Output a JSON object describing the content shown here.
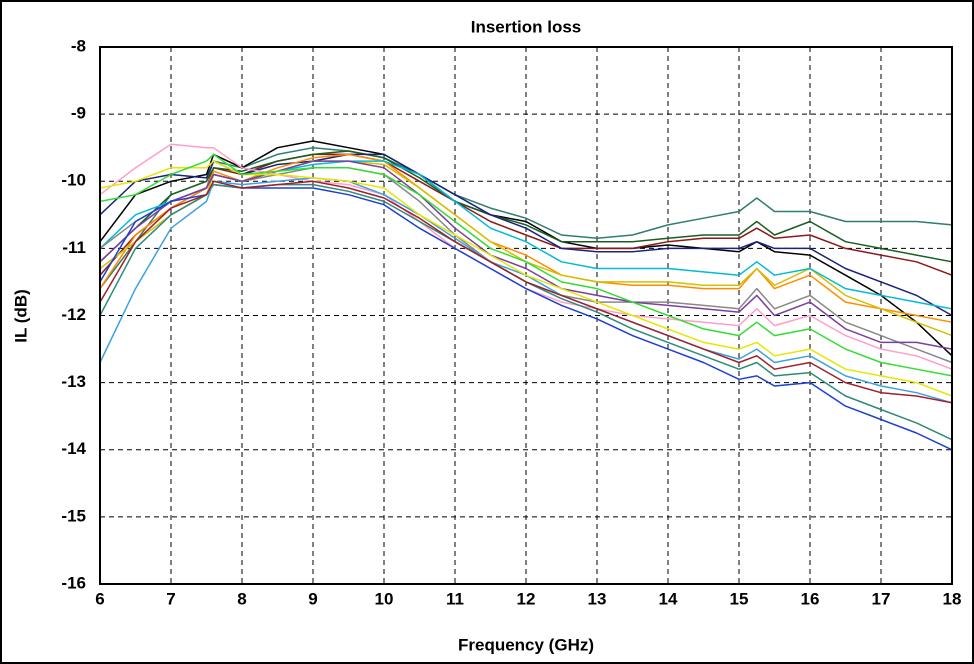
{
  "chart_data": {
    "type": "line",
    "title": "Insertion loss",
    "x_label": "Frequency (GHz)",
    "y_label": "IL (dB)",
    "x": [
      6,
      6.5,
      7,
      7.5,
      7.6,
      8,
      8.5,
      9,
      9.5,
      10,
      10.5,
      11,
      11.5,
      12,
      12.5,
      13,
      13.5,
      14,
      14.5,
      15,
      15.25,
      15.5,
      16,
      16.5,
      17,
      17.5,
      18
    ],
    "xlim": [
      6,
      18
    ],
    "xticks": [
      6,
      7,
      8,
      9,
      10,
      11,
      12,
      13,
      14,
      15,
      16,
      17,
      18
    ],
    "ylim": [
      -16,
      -8
    ],
    "yticks": [
      -16,
      -15,
      -14,
      -13,
      -12,
      -11,
      -10,
      -9,
      -8
    ],
    "grid": true,
    "series": [
      {
        "color": "#2e7d6e",
        "values": [
          -11.6,
          -10.9,
          -10.2,
          -10.0,
          -9.7,
          -9.8,
          -9.6,
          -9.5,
          -9.55,
          -9.65,
          -9.9,
          -10.2,
          -10.4,
          -10.55,
          -10.8,
          -10.85,
          -10.8,
          -10.65,
          -10.55,
          -10.45,
          -10.25,
          -10.45,
          -10.45,
          -10.6,
          -10.6,
          -10.6,
          -10.65
        ]
      },
      {
        "color": "#000000",
        "values": [
          -10.9,
          -10.2,
          -10.0,
          -9.9,
          -9.6,
          -9.8,
          -9.5,
          -9.4,
          -9.5,
          -9.6,
          -9.9,
          -10.3,
          -10.5,
          -10.6,
          -10.9,
          -11.0,
          -11.0,
          -10.95,
          -11.0,
          -11.05,
          -10.9,
          -11.05,
          -11.1,
          -11.4,
          -11.7,
          -12.1,
          -12.6
        ]
      },
      {
        "color": "#8b1a1a",
        "values": [
          -11.4,
          -10.8,
          -10.4,
          -10.1,
          -9.8,
          -9.9,
          -9.7,
          -9.6,
          -9.6,
          -9.7,
          -10.0,
          -10.3,
          -10.6,
          -10.8,
          -11.0,
          -11.0,
          -11.0,
          -10.9,
          -10.85,
          -10.85,
          -10.7,
          -10.85,
          -10.8,
          -11.0,
          -11.1,
          -11.2,
          -11.4
        ]
      },
      {
        "color": "#1b5e20",
        "values": [
          -11.2,
          -10.7,
          -10.2,
          -10.0,
          -9.8,
          -9.85,
          -9.7,
          -9.6,
          -9.55,
          -9.65,
          -9.95,
          -10.3,
          -10.5,
          -10.65,
          -10.9,
          -10.9,
          -10.9,
          -10.85,
          -10.8,
          -10.8,
          -10.6,
          -10.8,
          -10.6,
          -10.9,
          -11.0,
          -11.1,
          -11.2
        ]
      },
      {
        "color": "#1a237e",
        "values": [
          -10.5,
          -10.0,
          -9.9,
          -9.95,
          -9.7,
          -9.9,
          -9.75,
          -9.7,
          -9.6,
          -9.6,
          -9.9,
          -10.2,
          -10.5,
          -10.7,
          -11.0,
          -11.05,
          -11.05,
          -11.0,
          -11.0,
          -11.0,
          -10.9,
          -11.0,
          -11.0,
          -11.3,
          -11.5,
          -11.7,
          -12.0
        ]
      },
      {
        "color": "#ff8c00",
        "values": [
          -11.6,
          -10.8,
          -10.4,
          -10.1,
          -9.85,
          -10.0,
          -9.8,
          -9.65,
          -9.6,
          -9.7,
          -10.1,
          -10.5,
          -10.9,
          -11.1,
          -11.4,
          -11.5,
          -11.55,
          -11.55,
          -11.6,
          -11.6,
          -11.3,
          -11.6,
          -11.4,
          -11.8,
          -11.9,
          -12.0,
          -12.1
        ]
      },
      {
        "color": "#d4c000",
        "values": [
          -11.3,
          -10.9,
          -10.5,
          -10.2,
          -9.9,
          -10.0,
          -9.85,
          -9.7,
          -9.7,
          -9.75,
          -10.1,
          -10.5,
          -10.9,
          -11.2,
          -11.4,
          -11.5,
          -11.5,
          -11.5,
          -11.55,
          -11.55,
          -11.3,
          -11.55,
          -11.3,
          -11.7,
          -11.9,
          -12.1,
          -12.3
        ]
      },
      {
        "color": "#00bcd4",
        "values": [
          -11.0,
          -10.5,
          -10.3,
          -10.1,
          -9.9,
          -10.0,
          -9.85,
          -9.75,
          -9.7,
          -9.7,
          -9.9,
          -10.3,
          -10.7,
          -10.9,
          -11.2,
          -11.3,
          -11.3,
          -11.3,
          -11.35,
          -11.4,
          -11.2,
          -11.4,
          -11.3,
          -11.6,
          -11.7,
          -11.8,
          -11.9
        ]
      },
      {
        "color": "#888888",
        "values": [
          -11.0,
          -10.6,
          -10.3,
          -10.1,
          -9.9,
          -10.0,
          -9.9,
          -9.8,
          -9.8,
          -9.9,
          -10.3,
          -10.8,
          -11.2,
          -11.5,
          -11.7,
          -11.8,
          -11.8,
          -11.8,
          -11.85,
          -11.9,
          -11.6,
          -11.9,
          -11.7,
          -12.1,
          -12.3,
          -12.5,
          -12.7
        ]
      },
      {
        "color": "#7b3fa0",
        "values": [
          -11.2,
          -10.7,
          -10.3,
          -10.1,
          -9.9,
          -10.0,
          -9.85,
          -9.7,
          -9.7,
          -9.8,
          -10.2,
          -10.7,
          -11.1,
          -11.3,
          -11.6,
          -11.7,
          -11.8,
          -11.85,
          -11.9,
          -11.95,
          -11.7,
          -12.0,
          -11.8,
          -12.2,
          -12.4,
          -12.4,
          -12.5
        ]
      },
      {
        "color": "#ff9ecb",
        "values": [
          -10.2,
          -9.8,
          -9.45,
          -9.5,
          -9.5,
          -9.8,
          -9.9,
          -10.0,
          -10.05,
          -10.2,
          -10.6,
          -11.0,
          -11.3,
          -11.6,
          -11.8,
          -11.9,
          -12.0,
          -12.05,
          -12.1,
          -12.15,
          -11.9,
          -12.15,
          -12.0,
          -12.3,
          -12.5,
          -12.6,
          -12.8
        ]
      },
      {
        "color": "#1e40d0",
        "values": [
          -11.5,
          -10.6,
          -10.3,
          -10.2,
          -10.05,
          -10.1,
          -10.1,
          -10.1,
          -10.2,
          -10.35,
          -10.7,
          -11.0,
          -11.3,
          -11.6,
          -11.85,
          -12.05,
          -12.3,
          -12.5,
          -12.7,
          -12.95,
          -12.9,
          -13.05,
          -13.0,
          -13.35,
          -13.55,
          -13.75,
          -14.0
        ]
      },
      {
        "color": "#2e8b77",
        "values": [
          -12.0,
          -11.0,
          -10.5,
          -10.2,
          -10.05,
          -10.1,
          -10.05,
          -10.05,
          -10.15,
          -10.3,
          -10.6,
          -10.9,
          -11.2,
          -11.5,
          -11.75,
          -11.95,
          -12.2,
          -12.4,
          -12.6,
          -12.8,
          -12.7,
          -12.9,
          -12.85,
          -13.2,
          -13.4,
          -13.6,
          -13.85
        ]
      },
      {
        "color": "#3ba3e0",
        "values": [
          -12.7,
          -11.6,
          -10.7,
          -10.3,
          -10.0,
          -10.05,
          -10.0,
          -9.95,
          -10.0,
          -10.2,
          -10.5,
          -10.85,
          -11.2,
          -11.4,
          -11.7,
          -11.9,
          -12.1,
          -12.3,
          -12.5,
          -12.65,
          -12.5,
          -12.7,
          -12.6,
          -12.9,
          -13.05,
          -13.15,
          -13.3
        ]
      },
      {
        "color": "#e6e600",
        "values": [
          -10.1,
          -10.0,
          -9.8,
          -9.8,
          -9.7,
          -9.9,
          -9.9,
          -9.95,
          -10.0,
          -10.1,
          -10.5,
          -10.8,
          -11.1,
          -11.4,
          -11.6,
          -11.8,
          -12.0,
          -12.2,
          -12.4,
          -12.5,
          -12.4,
          -12.6,
          -12.5,
          -12.8,
          -12.9,
          -13.0,
          -13.2
        ]
      },
      {
        "color": "#a0202a",
        "values": [
          -11.8,
          -10.9,
          -10.4,
          -10.2,
          -10.0,
          -10.1,
          -10.05,
          -10.0,
          -10.1,
          -10.25,
          -10.55,
          -10.9,
          -11.2,
          -11.5,
          -11.7,
          -11.9,
          -12.1,
          -12.3,
          -12.5,
          -12.7,
          -12.6,
          -12.8,
          -12.7,
          -13.0,
          -13.15,
          -13.2,
          -13.3
        ]
      },
      {
        "color": "#33dd33",
        "values": [
          -10.3,
          -10.2,
          -9.9,
          -9.7,
          -9.6,
          -9.9,
          -9.85,
          -9.8,
          -9.8,
          -9.9,
          -10.2,
          -10.6,
          -11.0,
          -11.2,
          -11.5,
          -11.6,
          -11.8,
          -12.0,
          -12.2,
          -12.3,
          -12.1,
          -12.3,
          -12.2,
          -12.5,
          -12.7,
          -12.8,
          -12.9
        ]
      }
    ]
  }
}
